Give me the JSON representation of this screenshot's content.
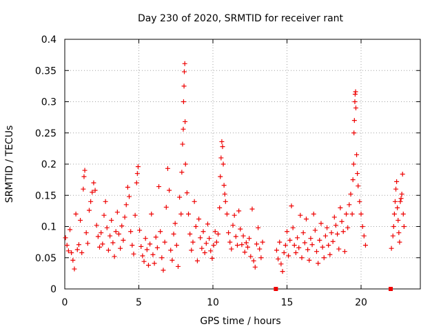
{
  "chart_data": {
    "type": "scatter",
    "title": "Day 230 of 2020, SRMTID for receiver rant",
    "xlabel": "GPS time / hours",
    "ylabel": "SRMTID / TECUs",
    "xlim": [
      0,
      24
    ],
    "ylim": [
      0,
      0.4
    ],
    "x_ticks": [
      0,
      5,
      10,
      15,
      20
    ],
    "x_tick_labels": [
      "0",
      "5",
      "10",
      "15",
      "20"
    ],
    "y_ticks": [
      0,
      0.05,
      0.1,
      0.15,
      0.2,
      0.25,
      0.3,
      0.35,
      0.4
    ],
    "y_tick_labels": [
      "0",
      "0.05",
      "0.1",
      "0.15",
      "0.2",
      "0.25",
      "0.3",
      "0.35",
      "0.4"
    ],
    "grid": true,
    "marker": "plus",
    "color": "#ee0000",
    "series": [
      {
        "name": "SRMTID",
        "points": [
          [
            0.05,
            0.082
          ],
          [
            0.15,
            0.07
          ],
          [
            0.25,
            0.061
          ],
          [
            0.35,
            0.095
          ],
          [
            0.45,
            0.058
          ],
          [
            0.55,
            0.046
          ],
          [
            0.65,
            0.032
          ],
          [
            0.75,
            0.12
          ],
          [
            0.85,
            0.063
          ],
          [
            0.95,
            0.071
          ],
          [
            1.05,
            0.11
          ],
          [
            1.15,
            0.058
          ],
          [
            1.25,
            0.16
          ],
          [
            1.3,
            0.18
          ],
          [
            1.35,
            0.19
          ],
          [
            1.45,
            0.09
          ],
          [
            1.55,
            0.073
          ],
          [
            1.65,
            0.126
          ],
          [
            1.75,
            0.14
          ],
          [
            1.85,
            0.155
          ],
          [
            1.95,
            0.17
          ],
          [
            2.05,
            0.158
          ],
          [
            2.15,
            0.102
          ],
          [
            2.25,
            0.084
          ],
          [
            2.35,
            0.067
          ],
          [
            2.45,
            0.09
          ],
          [
            2.55,
            0.072
          ],
          [
            2.65,
            0.118
          ],
          [
            2.75,
            0.14
          ],
          [
            2.85,
            0.098
          ],
          [
            2.95,
            0.062
          ],
          [
            3.05,
            0.085
          ],
          [
            3.15,
            0.11
          ],
          [
            3.25,
            0.074
          ],
          [
            3.35,
            0.052
          ],
          [
            3.45,
            0.092
          ],
          [
            3.55,
            0.123
          ],
          [
            3.65,
            0.088
          ],
          [
            3.75,
            0.065
          ],
          [
            3.85,
            0.101
          ],
          [
            3.95,
            0.078
          ],
          [
            4.05,
            0.115
          ],
          [
            4.15,
            0.135
          ],
          [
            4.25,
            0.163
          ],
          [
            4.35,
            0.148
          ],
          [
            4.45,
            0.092
          ],
          [
            4.55,
            0.07
          ],
          [
            4.65,
            0.056
          ],
          [
            4.75,
            0.118
          ],
          [
            4.85,
            0.17
          ],
          [
            4.9,
            0.185
          ],
          [
            4.95,
            0.196
          ],
          [
            5.05,
            0.094
          ],
          [
            5.15,
            0.068
          ],
          [
            5.25,
            0.053
          ],
          [
            5.35,
            0.044
          ],
          [
            5.45,
            0.081
          ],
          [
            5.55,
            0.063
          ],
          [
            5.65,
            0.038
          ],
          [
            5.75,
            0.072
          ],
          [
            5.85,
            0.12
          ],
          [
            5.95,
            0.055
          ],
          [
            6.05,
            0.041
          ],
          [
            6.15,
            0.083
          ],
          [
            6.25,
            0.066
          ],
          [
            6.35,
            0.164
          ],
          [
            6.45,
            0.092
          ],
          [
            6.55,
            0.05
          ],
          [
            6.65,
            0.03
          ],
          [
            6.75,
            0.075
          ],
          [
            6.85,
            0.131
          ],
          [
            6.95,
            0.193
          ],
          [
            7.05,
            0.158
          ],
          [
            7.15,
            0.062
          ],
          [
            7.25,
            0.046
          ],
          [
            7.35,
            0.088
          ],
          [
            7.45,
            0.105
          ],
          [
            7.55,
            0.07
          ],
          [
            7.65,
            0.036
          ],
          [
            7.75,
            0.147
          ],
          [
            7.85,
            0.12
          ],
          [
            7.9,
            0.187
          ],
          [
            7.95,
            0.232
          ],
          [
            8.0,
            0.256
          ],
          [
            8.02,
            0.3
          ],
          [
            8.05,
            0.325
          ],
          [
            8.07,
            0.348
          ],
          [
            8.1,
            0.361
          ],
          [
            8.12,
            0.268
          ],
          [
            8.15,
            0.2
          ],
          [
            8.25,
            0.154
          ],
          [
            8.35,
            0.12
          ],
          [
            8.45,
            0.088
          ],
          [
            8.55,
            0.062
          ],
          [
            8.65,
            0.075
          ],
          [
            8.75,
            0.14
          ],
          [
            8.85,
            0.1
          ],
          [
            8.95,
            0.045
          ],
          [
            9.05,
            0.112
          ],
          [
            9.15,
            0.082
          ],
          [
            9.25,
            0.065
          ],
          [
            9.35,
            0.092
          ],
          [
            9.45,
            0.058
          ],
          [
            9.55,
            0.073
          ],
          [
            9.65,
            0.104
          ],
          [
            9.75,
            0.081
          ],
          [
            9.85,
            0.061
          ],
          [
            9.95,
            0.049
          ],
          [
            10.05,
            0.07
          ],
          [
            10.15,
            0.092
          ],
          [
            10.25,
            0.075
          ],
          [
            10.35,
            0.088
          ],
          [
            10.45,
            0.13
          ],
          [
            10.5,
            0.18
          ],
          [
            10.55,
            0.21
          ],
          [
            10.6,
            0.236
          ],
          [
            10.65,
            0.228
          ],
          [
            10.7,
            0.2
          ],
          [
            10.75,
            0.166
          ],
          [
            10.8,
            0.152
          ],
          [
            10.85,
            0.14
          ],
          [
            10.95,
            0.12
          ],
          [
            11.05,
            0.09
          ],
          [
            11.15,
            0.075
          ],
          [
            11.25,
            0.064
          ],
          [
            11.35,
            0.102
          ],
          [
            11.45,
            0.118
          ],
          [
            11.55,
            0.084
          ],
          [
            11.65,
            0.07
          ],
          [
            11.75,
            0.125
          ],
          [
            11.85,
            0.096
          ],
          [
            11.95,
            0.071
          ],
          [
            12.05,
            0.085
          ],
          [
            12.15,
            0.059
          ],
          [
            12.25,
            0.074
          ],
          [
            12.35,
            0.067
          ],
          [
            12.45,
            0.081
          ],
          [
            12.55,
            0.052
          ],
          [
            12.65,
            0.128
          ],
          [
            12.75,
            0.045
          ],
          [
            12.85,
            0.035
          ],
          [
            12.95,
            0.072
          ],
          [
            13.05,
            0.098
          ],
          [
            13.15,
            0.064
          ],
          [
            13.25,
            0.05
          ],
          [
            13.35,
            0.075
          ],
          [
            14.25,
            0.0
          ],
          [
            14.3,
            0.062
          ],
          [
            14.4,
            0.048
          ],
          [
            14.5,
            0.075
          ],
          [
            14.6,
            0.04
          ],
          [
            14.7,
            0.028
          ],
          [
            14.8,
            0.058
          ],
          [
            14.9,
            0.07
          ],
          [
            15.0,
            0.092
          ],
          [
            15.1,
            0.053
          ],
          [
            15.2,
            0.078
          ],
          [
            15.3,
            0.133
          ],
          [
            15.4,
            0.098
          ],
          [
            15.5,
            0.07
          ],
          [
            15.6,
            0.058
          ],
          [
            15.7,
            0.082
          ],
          [
            15.8,
            0.066
          ],
          [
            15.9,
            0.118
          ],
          [
            16.0,
            0.05
          ],
          [
            16.1,
            0.09
          ],
          [
            16.2,
            0.074
          ],
          [
            16.3,
            0.112
          ],
          [
            16.4,
            0.063
          ],
          [
            16.5,
            0.046
          ],
          [
            16.6,
            0.081
          ],
          [
            16.7,
            0.071
          ],
          [
            16.8,
            0.12
          ],
          [
            16.9,
            0.094
          ],
          [
            17.0,
            0.06
          ],
          [
            17.1,
            0.041
          ],
          [
            17.2,
            0.078
          ],
          [
            17.3,
            0.105
          ],
          [
            17.4,
            0.067
          ],
          [
            17.5,
            0.05
          ],
          [
            17.6,
            0.085
          ],
          [
            17.7,
            0.098
          ],
          [
            17.8,
            0.07
          ],
          [
            17.9,
            0.055
          ],
          [
            18.0,
            0.09
          ],
          [
            18.1,
            0.076
          ],
          [
            18.2,
            0.115
          ],
          [
            18.3,
            0.102
          ],
          [
            18.4,
            0.088
          ],
          [
            18.5,
            0.064
          ],
          [
            18.6,
            0.13
          ],
          [
            18.7,
            0.108
          ],
          [
            18.8,
            0.092
          ],
          [
            18.9,
            0.06
          ],
          [
            19.0,
            0.12
          ],
          [
            19.1,
            0.098
          ],
          [
            19.2,
            0.135
          ],
          [
            19.3,
            0.152
          ],
          [
            19.4,
            0.12
          ],
          [
            19.45,
            0.175
          ],
          [
            19.5,
            0.2
          ],
          [
            19.52,
            0.25
          ],
          [
            19.55,
            0.27
          ],
          [
            19.58,
            0.3
          ],
          [
            19.6,
            0.312
          ],
          [
            19.63,
            0.316
          ],
          [
            19.65,
            0.29
          ],
          [
            19.7,
            0.215
          ],
          [
            19.75,
            0.185
          ],
          [
            19.8,
            0.165
          ],
          [
            19.9,
            0.14
          ],
          [
            20.0,
            0.12
          ],
          [
            20.1,
            0.1
          ],
          [
            20.2,
            0.085
          ],
          [
            20.3,
            0.07
          ],
          [
            22.0,
            0.0
          ],
          [
            22.05,
            0.065
          ],
          [
            22.15,
            0.085
          ],
          [
            22.2,
            0.1
          ],
          [
            22.25,
            0.12
          ],
          [
            22.3,
            0.14
          ],
          [
            22.35,
            0.16
          ],
          [
            22.4,
            0.172
          ],
          [
            22.45,
            0.13
          ],
          [
            22.5,
            0.11
          ],
          [
            22.55,
            0.09
          ],
          [
            22.6,
            0.075
          ],
          [
            22.65,
            0.14
          ],
          [
            22.7,
            0.145
          ],
          [
            22.75,
            0.152
          ],
          [
            22.8,
            0.184
          ],
          [
            22.85,
            0.12
          ],
          [
            22.9,
            0.1
          ]
        ]
      }
    ]
  }
}
